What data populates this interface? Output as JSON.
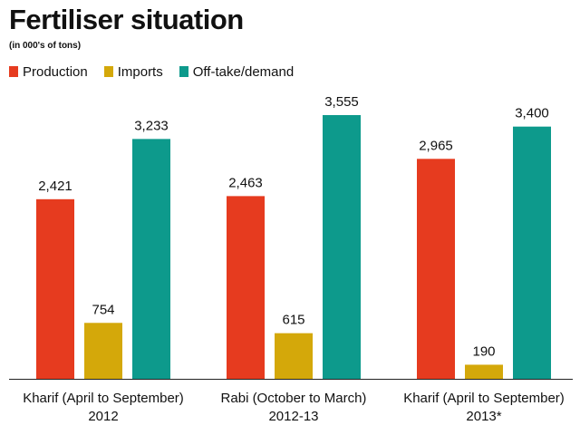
{
  "chart_data": {
    "type": "bar",
    "title": "Fertiliser situation",
    "subtitle": "(in 000's of tons)",
    "categories": [
      [
        "Kharif (April to September)",
        "2012"
      ],
      [
        "Rabi (October to March)",
        "2012-13"
      ],
      [
        "Kharif (April to September)",
        "2013*"
      ]
    ],
    "series": [
      {
        "name": "Production",
        "color": "#e63b1f",
        "values": [
          2421,
          2463,
          2965
        ],
        "labels": [
          "2,421",
          "2,463",
          "2,965"
        ]
      },
      {
        "name": "Imports",
        "color": "#d4a80a",
        "values": [
          754,
          615,
          190
        ],
        "labels": [
          "754",
          "615",
          "190"
        ]
      },
      {
        "name": "Off-take/demand",
        "color": "#0d9a8c",
        "values": [
          3233,
          3555,
          3400
        ],
        "labels": [
          "3,233",
          "3,555",
          "3,400"
        ]
      }
    ],
    "ylim": [
      0,
      3555
    ],
    "grid": false,
    "legend": "top-left"
  }
}
